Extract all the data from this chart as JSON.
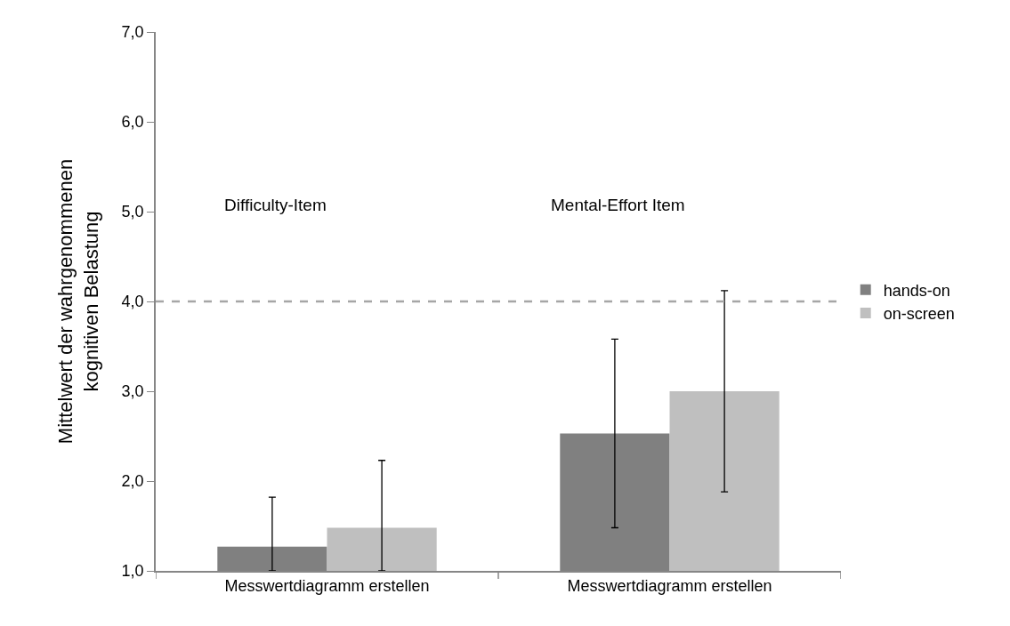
{
  "chart_data": {
    "type": "bar",
    "ylabel": "Mittelwert der wahrgenommenen\nkognitiven Belastung",
    "categories": [
      "Messwertdiagramm erstellen",
      "Messwertdiagramm erstellen"
    ],
    "series": [
      {
        "name": "hands-on",
        "color": "#808080",
        "values": [
          1.27,
          2.53
        ],
        "errors": [
          [
            1.0,
            1.82
          ],
          1.05
        ]
      },
      {
        "name": "on-screen",
        "color": "#bfbfbf",
        "values": [
          1.48,
          3.0
        ],
        "errors": [
          [
            1.0,
            2.23
          ],
          1.12
        ]
      }
    ],
    "ylim": [
      1.0,
      7.0
    ],
    "yticks": [
      {
        "value": 1,
        "label": "1,0"
      },
      {
        "value": 2,
        "label": "2,0"
      },
      {
        "value": 3,
        "label": "3,0"
      },
      {
        "value": 4,
        "label": "4,0"
      },
      {
        "value": 5,
        "label": "5,0"
      },
      {
        "value": 6,
        "label": "6,0"
      },
      {
        "value": 7,
        "label": "7,0"
      }
    ],
    "ref_lines": [
      {
        "axis": "y",
        "value": 4.0,
        "color": "#a6a6a6",
        "line_style": "dashed"
      }
    ],
    "annotations": [
      "Difficulty-Item",
      "Mental-Effort Item"
    ],
    "legend": "right"
  }
}
